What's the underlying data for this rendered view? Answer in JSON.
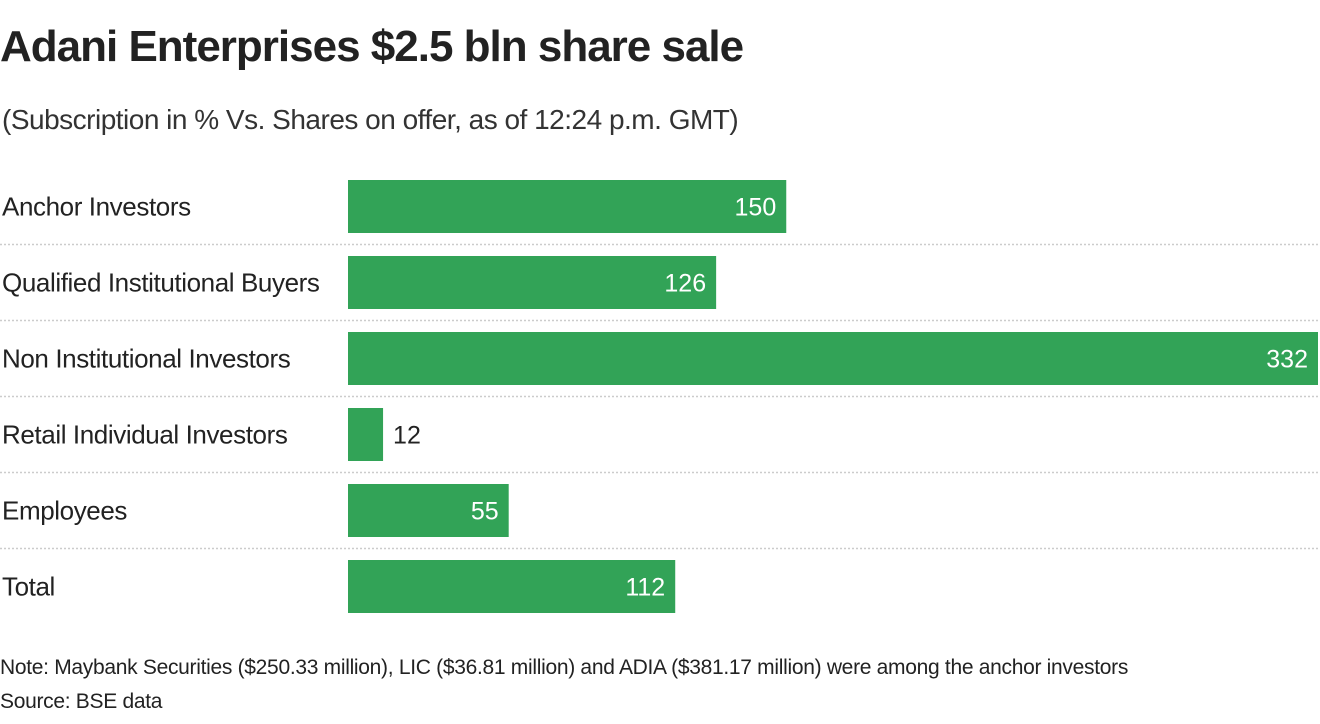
{
  "header": {
    "title": "Adani Enterprises $2.5 bln share sale",
    "subtitle": "(Subscription in % Vs. Shares on offer, as of 12:24 p.m. GMT)"
  },
  "footer": {
    "note": "Note: Maybank Securities ($250.33 million), LIC ($36.81 million) and ADIA ($381.17 million) were among the anchor investors",
    "source": "Source: BSE data"
  },
  "colors": {
    "bar": "#32a357",
    "label_inside": "#ffffff",
    "label_outside": "#222222",
    "gridline": "#cccccc"
  },
  "chart_data": {
    "type": "bar",
    "orientation": "horizontal",
    "title": "Adani Enterprises $2.5 bln share sale",
    "subtitle": "(Subscription in % Vs. Shares on offer, as of 12:24 p.m. GMT)",
    "xlabel": "",
    "ylabel": "",
    "categories": [
      "Anchor Investors",
      "Qualified Institutional Buyers",
      "Non Institutional Investors",
      "Retail Individual Investors",
      "Employees",
      "Total"
    ],
    "values": [
      150,
      126,
      332,
      12,
      55,
      112
    ],
    "value_labels": [
      "150",
      "126",
      "332",
      "12",
      "55",
      "112"
    ],
    "xlim": [
      0,
      332
    ],
    "grid": false,
    "row_separators": "dotted",
    "legend": "none"
  }
}
